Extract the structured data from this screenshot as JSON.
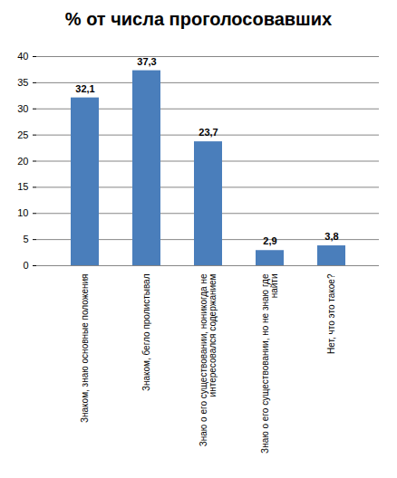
{
  "chart_data": {
    "type": "bar",
    "title": "% от числа проголосовавших",
    "categories": [
      "Знаком, знаю основные положения",
      "Знаком, бегло пролистывал",
      "Знаю о его существовании, ноникогда не интересовался содержанием",
      "Знаю о его существовании, но не знаю где найти",
      "Нет, что это такое?"
    ],
    "values": [
      32.1,
      37.3,
      23.7,
      2.9,
      3.8
    ],
    "value_labels": [
      "32,1",
      "37,3",
      "23,7",
      "2,9",
      "3,8"
    ],
    "color": "#4a7ebb",
    "ylim": [
      0,
      40
    ],
    "yticks": [
      0,
      5,
      10,
      15,
      20,
      25,
      30,
      35,
      40
    ],
    "grid": true,
    "data_labels": true
  }
}
